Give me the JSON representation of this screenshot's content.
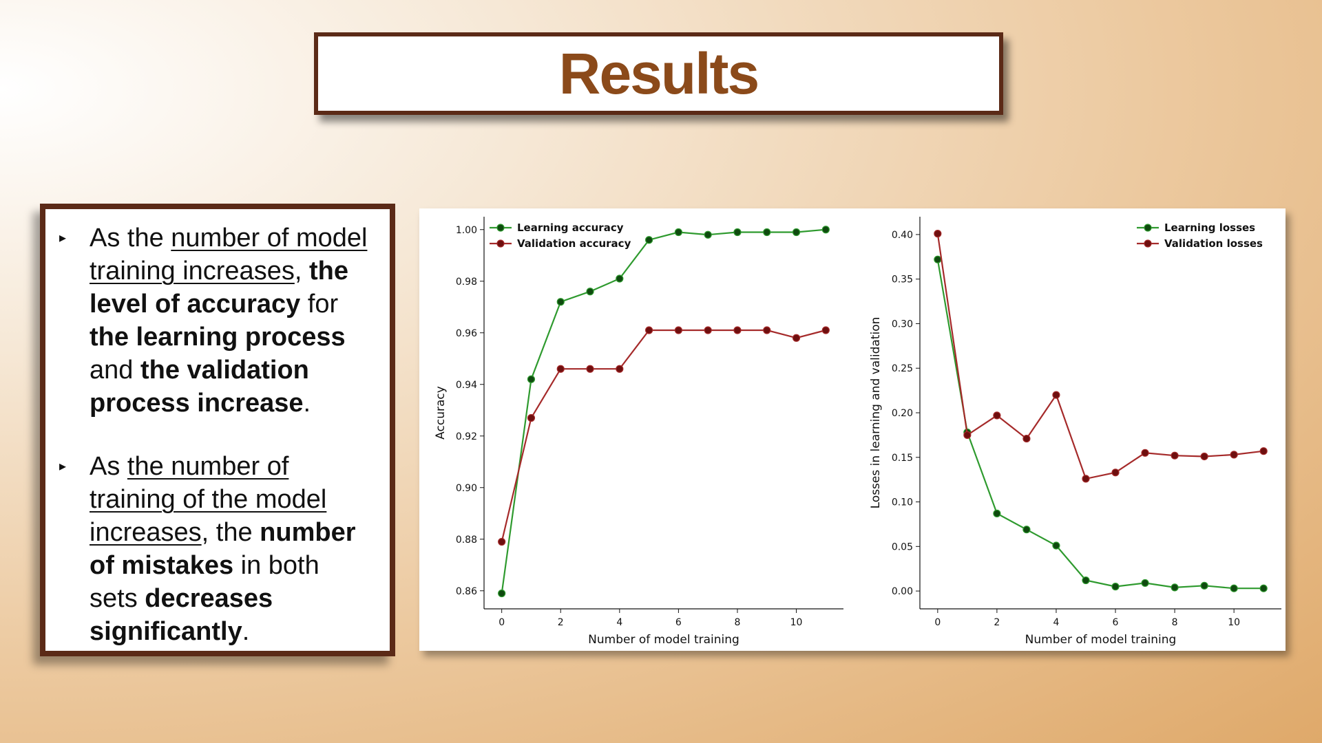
{
  "slide": {
    "title": "Results",
    "bullets": [
      [
        {
          "t": "As the ",
          "s": "n"
        },
        {
          "t": "number of model training increases",
          "s": "u"
        },
        {
          "t": ", ",
          "s": "n"
        },
        {
          "t": "the level of accuracy",
          "s": "b"
        },
        {
          "t": " for ",
          "s": "n"
        },
        {
          "t": "the learning process",
          "s": "b"
        },
        {
          "t": " and ",
          "s": "n"
        },
        {
          "t": "the validation process increase",
          "s": "b"
        },
        {
          "t": ".",
          "s": "n"
        }
      ],
      [
        {
          "t": "As ",
          "s": "n"
        },
        {
          "t": "the number of training of the model increases",
          "s": "u"
        },
        {
          "t": ", the ",
          "s": "n"
        },
        {
          "t": "number of mistakes",
          "s": "b"
        },
        {
          "t": " in both sets ",
          "s": "n"
        },
        {
          "t": "decreases significantly",
          "s": "b"
        },
        {
          "t": ".",
          "s": "n"
        }
      ]
    ]
  },
  "colors": {
    "title_text": "#8b4a1a",
    "frame": "#5b2a17",
    "learning": "#2e9a2e",
    "learning_marker": "#0f4a0f",
    "validation": "#a52a2a",
    "validation_marker": "#6e0f0f"
  },
  "chart_data": [
    {
      "type": "line",
      "xlabel": "Number of model training",
      "ylabel": "Accuracy",
      "xlim": [
        -0.6,
        11.6
      ],
      "ylim": [
        0.853,
        1.005
      ],
      "xticks": [
        0,
        2,
        4,
        6,
        8,
        10
      ],
      "xtick_labels": [
        "0",
        "2",
        "4",
        "6",
        "8",
        "10"
      ],
      "yticks": [
        0.86,
        0.88,
        0.9,
        0.92,
        0.94,
        0.96,
        0.98,
        1.0
      ],
      "ytick_labels": [
        "0.86",
        "0.88",
        "0.90",
        "0.92",
        "0.94",
        "0.96",
        "0.98",
        "1.00"
      ],
      "legend_position": "top-left",
      "x": [
        0,
        1,
        2,
        3,
        4,
        5,
        6,
        7,
        8,
        9,
        10,
        11
      ],
      "series": [
        {
          "name": "Learning accuracy",
          "color": "#2e9a2e",
          "values": [
            0.859,
            0.942,
            0.972,
            0.976,
            0.981,
            0.996,
            0.999,
            0.998,
            0.999,
            0.999,
            0.999,
            1.0
          ]
        },
        {
          "name": "Validation accuracy",
          "color": "#a52a2a",
          "values": [
            0.879,
            0.927,
            0.946,
            0.946,
            0.946,
            0.961,
            0.961,
            0.961,
            0.961,
            0.961,
            0.958,
            0.961
          ]
        }
      ]
    },
    {
      "type": "line",
      "xlabel": "Number of model training",
      "ylabel": "Losses in learning and validation",
      "xlim": [
        -0.6,
        11.6
      ],
      "ylim": [
        -0.02,
        0.42
      ],
      "xticks": [
        0,
        2,
        4,
        6,
        8,
        10
      ],
      "xtick_labels": [
        "0",
        "2",
        "4",
        "6",
        "8",
        "10"
      ],
      "yticks": [
        0.0,
        0.05,
        0.1,
        0.15,
        0.2,
        0.25,
        0.3,
        0.35,
        0.4
      ],
      "ytick_labels": [
        "0.00",
        "0.05",
        "0.10",
        "0.15",
        "0.20",
        "0.25",
        "0.30",
        "0.35",
        "0.40"
      ],
      "legend_position": "top-right",
      "x": [
        0,
        1,
        2,
        3,
        4,
        5,
        6,
        7,
        8,
        9,
        10,
        11
      ],
      "series": [
        {
          "name": "Learning losses",
          "color": "#2e9a2e",
          "values": [
            0.372,
            0.178,
            0.087,
            0.069,
            0.051,
            0.012,
            0.005,
            0.009,
            0.004,
            0.006,
            0.003,
            0.003
          ]
        },
        {
          "name": "Validation losses",
          "color": "#a52a2a",
          "values": [
            0.401,
            0.175,
            0.197,
            0.171,
            0.22,
            0.126,
            0.133,
            0.155,
            0.152,
            0.151,
            0.153,
            0.157
          ]
        }
      ]
    }
  ]
}
